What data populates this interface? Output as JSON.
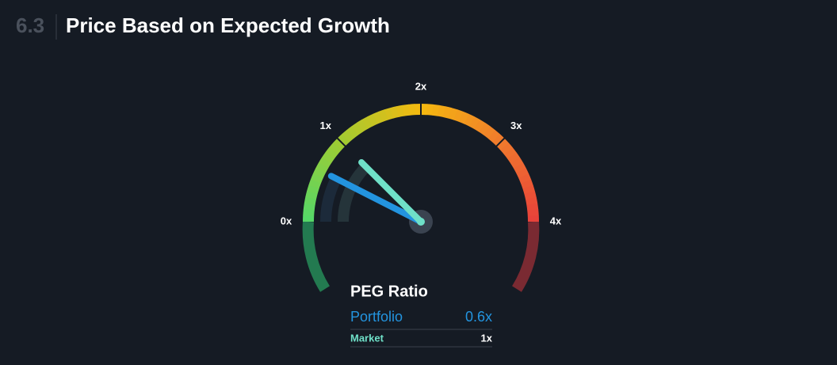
{
  "chart_data": {
    "type": "gauge",
    "section": "6.3",
    "title": "Price Based on Expected Growth",
    "subtitle": "PEG Ratio",
    "xlim": [
      0,
      4
    ],
    "xticks": [
      {
        "value": 0,
        "label": "0x"
      },
      {
        "value": 1,
        "label": "1x"
      },
      {
        "value": 2,
        "label": "2x"
      },
      {
        "value": 3,
        "label": "3x"
      },
      {
        "value": 4,
        "label": "4x"
      }
    ],
    "series": [
      {
        "name": "Portfolio",
        "color": "#2394df",
        "values": [
          0.6
        ],
        "value_labels": [
          "0.6x"
        ]
      },
      {
        "name": "Market",
        "color": "#6fe0c8",
        "values": [
          1
        ],
        "value_labels": [
          "1x"
        ]
      }
    ]
  }
}
